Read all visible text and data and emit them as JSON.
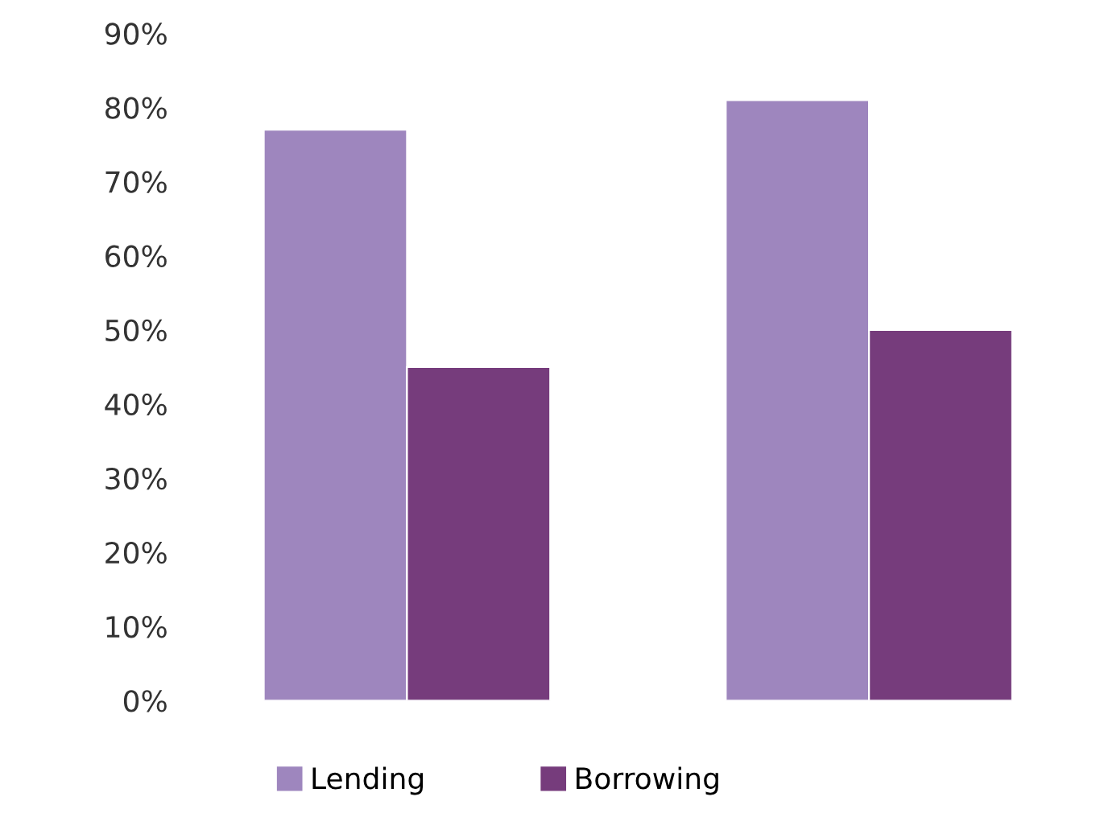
{
  "chart_data": {
    "type": "bar",
    "categories": [
      null,
      null
    ],
    "series": [
      {
        "name": "Lending",
        "color": "#9e86be",
        "values": [
          77,
          81
        ]
      },
      {
        "name": "Borrowing",
        "color": "#763c7c",
        "values": [
          45,
          50
        ]
      }
    ],
    "ylim": [
      0,
      90
    ],
    "yticks": [
      {
        "value": 0,
        "label": "0%"
      },
      {
        "value": 10,
        "label": "10%"
      },
      {
        "value": 20,
        "label": "20%"
      },
      {
        "value": 30,
        "label": "30%"
      },
      {
        "value": 40,
        "label": "40%"
      },
      {
        "value": 50,
        "label": "50%"
      },
      {
        "value": 60,
        "label": "60%"
      },
      {
        "value": 70,
        "label": "70%"
      },
      {
        "value": 80,
        "label": "80%"
      },
      {
        "value": 90,
        "label": "90%"
      }
    ],
    "grid": false,
    "legend": "bottom"
  }
}
